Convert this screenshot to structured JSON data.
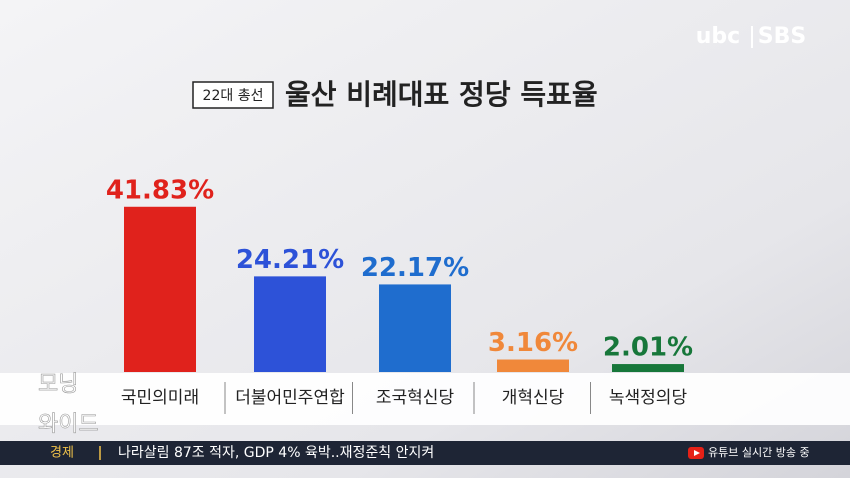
{
  "chart_data": {
    "type": "bar",
    "badge": "22대 총선",
    "title": "울산 비례대표 정당 득표율",
    "categories": [
      "국민의미래",
      "더불어민주연합",
      "조국혁신당",
      "개혁신당",
      "녹색정의당"
    ],
    "values": [
      41.83,
      24.21,
      22.17,
      3.16,
      2.01
    ],
    "value_labels": [
      "41.83%",
      "24.21%",
      "22.17%",
      "3.16%",
      "2.01%"
    ],
    "colors": [
      "#e0221c",
      "#2d52d8",
      "#1f6dce",
      "#f0883a",
      "#17773a"
    ]
  },
  "logo": {
    "left": "ubc",
    "right": "SBS"
  },
  "watermark": {
    "line1": "모닝",
    "line2": "와이드"
  },
  "ticker": {
    "section": "경제",
    "headline": "나라살림 87조 적자, GDP 4% 육박..재정준칙 안지켜",
    "youtube": "유튜브 실시간 방송 중"
  }
}
